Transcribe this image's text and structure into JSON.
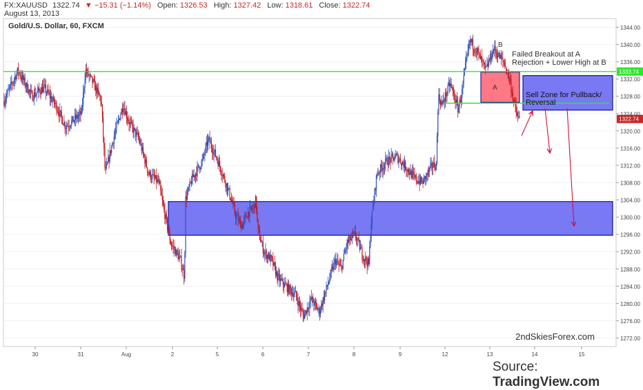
{
  "header": {
    "symbol": "FX:XAUUSD",
    "price": "1322.74",
    "change": "−15.31 (−1.14%)",
    "open_label": "Open:",
    "open": "1326.53",
    "high_label": "High:",
    "high": "1327.42",
    "low_label": "Low:",
    "low": "1318.61",
    "close_label": "Close:",
    "close": "1322.74",
    "date": "August 13, 2013"
  },
  "chart_data": {
    "type": "candlestick",
    "title": "Gold/U.S. Dollar, 60, FXCM",
    "ylim": [
      1270,
      1346
    ],
    "yticks": [
      1272,
      1276,
      1280,
      1284,
      1288,
      1292,
      1296,
      1300,
      1304,
      1308,
      1312,
      1316,
      1320,
      1324,
      1328,
      1332,
      1336,
      1340,
      1344
    ],
    "ytick_labels": [
      "1272.00",
      "1276.00",
      "1280.00",
      "1284.00",
      "1288.00",
      "1292.00",
      "1296.00",
      "1300.00",
      "1304.00",
      "1308.00",
      "1312.00",
      "1316.00",
      "1320.00",
      "1324.00",
      "1328.00",
      "1332.00",
      "1336.00",
      "1340.00",
      "1344.00"
    ],
    "x_range": [
      29.4,
      16.1
    ],
    "xticks": [
      {
        "label": "30",
        "pos": 30
      },
      {
        "label": "31",
        "pos": 31
      },
      {
        "label": "Aug",
        "pos": 32
      },
      {
        "label": "2",
        "pos": 33
      },
      {
        "label": "5",
        "pos": 34
      },
      {
        "label": "6",
        "pos": 35
      },
      {
        "label": "7",
        "pos": 36
      },
      {
        "label": "8",
        "pos": 37
      },
      {
        "label": "9",
        "pos": 38
      },
      {
        "label": "12",
        "pos": 39
      },
      {
        "label": "13",
        "pos": 40
      },
      {
        "label": "14",
        "pos": 41
      },
      {
        "label": "15",
        "pos": 42
      }
    ],
    "path_price": [
      [
        0,
        1327
      ],
      [
        0.35,
        1334
      ],
      [
        0.7,
        1328
      ],
      [
        1.0,
        1330
      ],
      [
        1.3,
        1326
      ],
      [
        1.55,
        1321
      ],
      [
        1.95,
        1324
      ],
      [
        2.05,
        1334
      ],
      [
        2.25,
        1331
      ],
      [
        2.45,
        1327
      ],
      [
        2.55,
        1310
      ],
      [
        2.75,
        1318
      ],
      [
        3.0,
        1326
      ],
      [
        3.15,
        1322
      ],
      [
        3.4,
        1318
      ],
      [
        3.65,
        1310
      ],
      [
        3.9,
        1308
      ],
      [
        4.0,
        1303
      ],
      [
        4.2,
        1294
      ],
      [
        4.45,
        1290
      ],
      [
        4.55,
        1286
      ],
      [
        4.57,
        1304
      ],
      [
        4.75,
        1309
      ],
      [
        5.0,
        1313
      ],
      [
        5.15,
        1318
      ],
      [
        5.35,
        1314
      ],
      [
        5.55,
        1309
      ],
      [
        5.7,
        1305
      ],
      [
        5.85,
        1300
      ],
      [
        6.0,
        1298
      ],
      [
        6.15,
        1301
      ],
      [
        6.28,
        1302
      ],
      [
        6.35,
        1304
      ],
      [
        6.4,
        1297
      ],
      [
        6.55,
        1292
      ],
      [
        6.75,
        1290
      ],
      [
        6.9,
        1286
      ],
      [
        7.1,
        1284
      ],
      [
        7.35,
        1282
      ],
      [
        7.55,
        1277
      ],
      [
        7.75,
        1281
      ],
      [
        7.95,
        1278
      ],
      [
        8.15,
        1284
      ],
      [
        8.35,
        1290
      ],
      [
        8.5,
        1288
      ],
      [
        8.65,
        1294
      ],
      [
        8.85,
        1296
      ],
      [
        9.05,
        1291
      ],
      [
        9.2,
        1289
      ],
      [
        9.25,
        1298
      ],
      [
        9.4,
        1310
      ],
      [
        9.65,
        1313
      ],
      [
        9.9,
        1314
      ],
      [
        10.1,
        1312
      ],
      [
        10.35,
        1309
      ],
      [
        10.55,
        1308
      ],
      [
        10.8,
        1312
      ],
      [
        10.9,
        1312
      ],
      [
        10.95,
        1328
      ],
      [
        11.05,
        1326
      ],
      [
        11.25,
        1331
      ],
      [
        11.45,
        1325
      ],
      [
        11.55,
        1329
      ],
      [
        11.62,
        1334
      ],
      [
        11.75,
        1341
      ],
      [
        11.95,
        1338
      ],
      [
        12.15,
        1334
      ],
      [
        12.35,
        1339
      ],
      [
        12.5,
        1337
      ],
      [
        12.6,
        1336
      ],
      [
        12.75,
        1332
      ],
      [
        12.85,
        1327
      ],
      [
        12.95,
        1323
      ],
      [
        13.0,
        1322.74
      ]
    ],
    "levels": [
      {
        "price": 1333.74,
        "label": "1333.74",
        "color": "#2ee62e"
      },
      {
        "price": 1322.74,
        "label": "1322.74",
        "color": "#c62828"
      }
    ],
    "zones": [
      {
        "name": "support-zone",
        "from_day": 3.05,
        "to_day": 16.05,
        "top": 1303.6,
        "bottom": 1295.8,
        "color": "#5858f0"
      },
      {
        "name": "sell-zone",
        "from_day": 14.75,
        "to_day": 16.05,
        "top": 1332.8,
        "bottom": 1324.8,
        "color": "#5858f0"
      },
      {
        "name": "breakout-box",
        "from_day": 13.8,
        "to_day": 14.6,
        "top": 1333.6,
        "bottom": 1326.6,
        "color": "#ff6070"
      }
    ],
    "short_line": {
      "from_day": 13.8,
      "to_day": 16.0,
      "price": 1326.4,
      "color": "#2ee62e"
    },
    "annotations": {
      "a": "A",
      "b": "B",
      "failed_1": "Failed Breakout at A",
      "failed_2": "Rejection + Lower High at B",
      "sell_1": "Sell Zone for Pullback/",
      "sell_2": "Reversal"
    },
    "arrows_price": [
      {
        "from": [
          14.58,
          1320.2
        ],
        "to": [
          14.8,
          1325.4
        ]
      },
      {
        "from": [
          15.0,
          1324.8
        ],
        "to": [
          15.1,
          1315.2
        ]
      },
      {
        "from": [
          15.6,
          1324.8
        ],
        "to": [
          15.75,
          1297.0
        ]
      }
    ]
  },
  "footer": {
    "watermark": "2ndSkiesForex.com",
    "source_prefix": "Source: ",
    "source_site": "TradingView.com"
  },
  "colors": {
    "up": "#3050b8",
    "down": "#c0141c",
    "axis": "#9a9a9a",
    "grid": "#f0f0f0"
  }
}
